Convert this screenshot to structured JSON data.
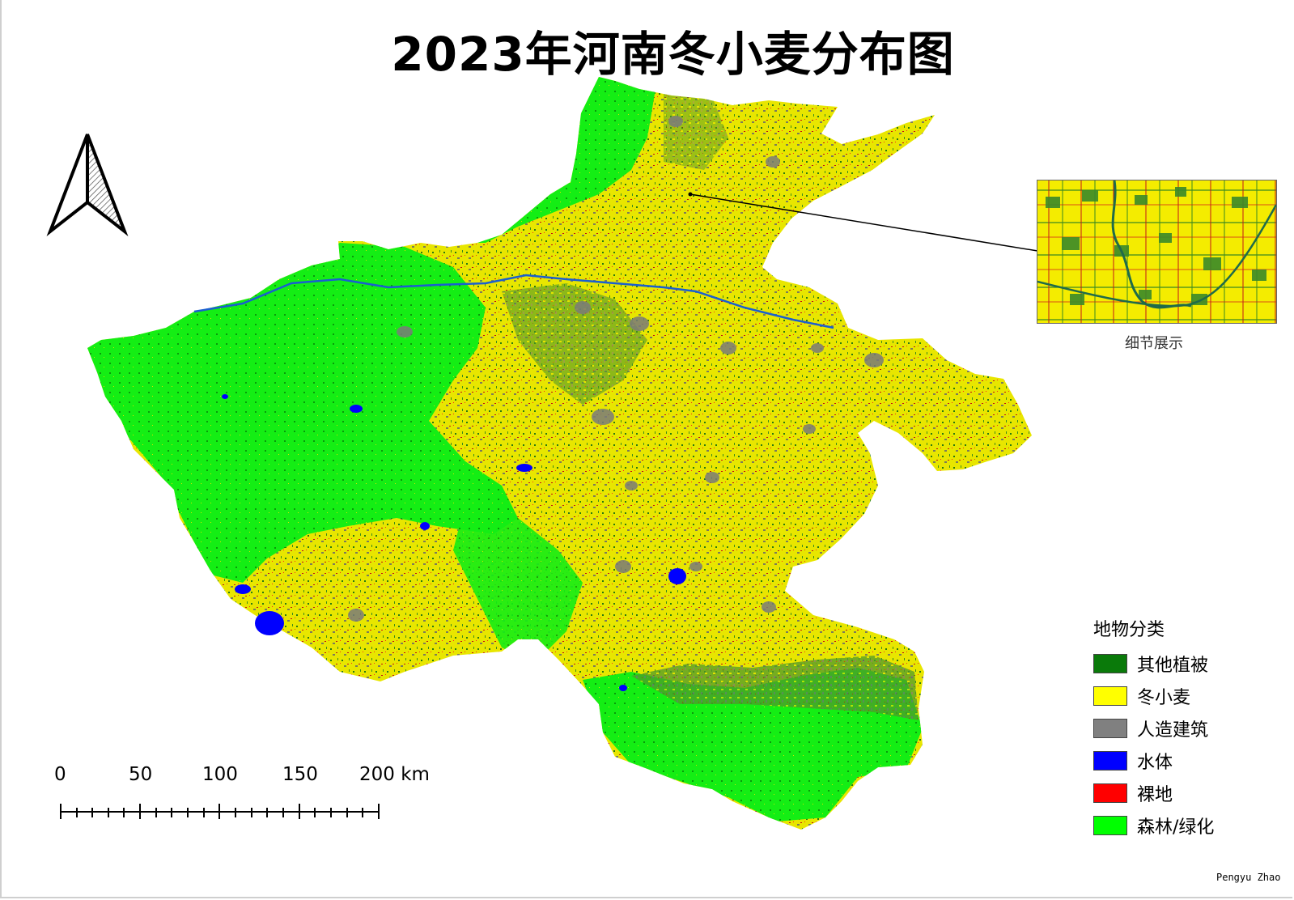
{
  "title": "2023年河南冬小麦分布图",
  "inset_caption": "细节展示",
  "legend": {
    "title": "地物分类",
    "items": [
      {
        "label": "其他植被",
        "color": "#0a7a0a"
      },
      {
        "label": "冬小麦",
        "color": "#ffff00"
      },
      {
        "label": "人造建筑",
        "color": "#808080"
      },
      {
        "label": "水体",
        "color": "#0000ff"
      },
      {
        "label": "裸地",
        "color": "#ff0000"
      },
      {
        "label": "森林/绿化",
        "color": "#00ff00"
      }
    ]
  },
  "scale_bar": {
    "ticks": [
      "0",
      "50",
      "100",
      "150",
      "200 km"
    ]
  },
  "credit": "Pengyu  Zhao",
  "icons": {
    "north_arrow": "north-arrow-icon"
  }
}
